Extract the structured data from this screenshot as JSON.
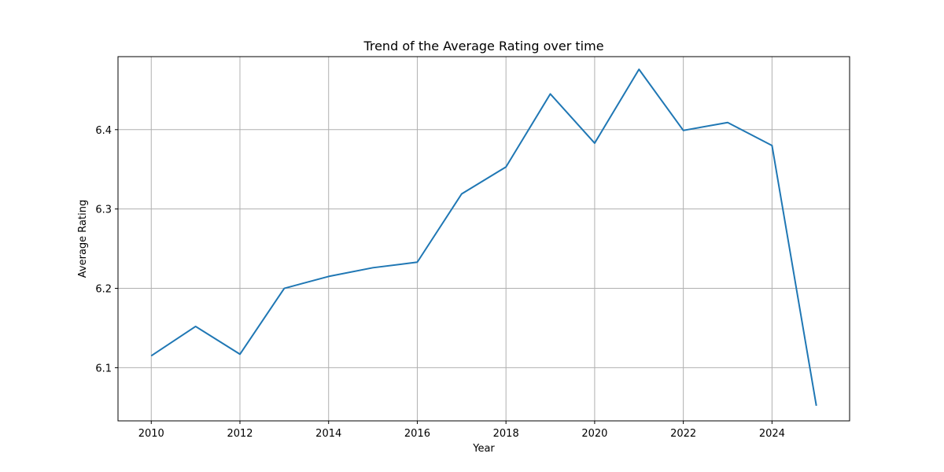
{
  "chart_data": {
    "type": "line",
    "title": "Trend of the Average Rating over time",
    "xlabel": "Year",
    "ylabel": "Average Rating",
    "grid": true,
    "legend": "none",
    "xlim": [
      2009.25,
      2025.75
    ],
    "ylim": [
      6.033,
      6.492
    ],
    "xticks": [
      2010,
      2012,
      2014,
      2016,
      2018,
      2020,
      2022,
      2024
    ],
    "yticks": [
      6.1,
      6.2,
      6.3,
      6.4
    ],
    "xtick_labels": [
      "2010",
      "2012",
      "2014",
      "2016",
      "2018",
      "2020",
      "2022",
      "2024"
    ],
    "ytick_labels": [
      "6.1",
      "6.2",
      "6.3",
      "6.4"
    ],
    "series": [
      {
        "color": "#1f77b4",
        "x": [
          2010,
          2011,
          2012,
          2013,
          2014,
          2015,
          2016,
          2017,
          2018,
          2019,
          2020,
          2021,
          2022,
          2023,
          2024,
          2025
        ],
        "y": [
          6.115,
          6.152,
          6.117,
          6.2,
          6.215,
          6.226,
          6.233,
          6.319,
          6.353,
          6.445,
          6.383,
          6.476,
          6.399,
          6.409,
          6.38,
          6.052
        ]
      }
    ]
  }
}
